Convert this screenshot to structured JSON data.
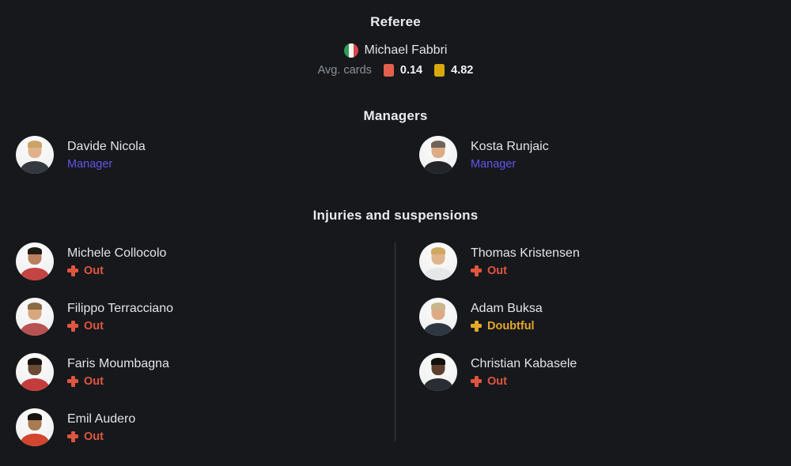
{
  "theme": {
    "background": "#16181c",
    "heading_color": "#e9ebed",
    "text_color": "#e2e4e6",
    "muted_color": "#8d9298",
    "accent_purple": "#6456e9",
    "status_out": "#e0553f",
    "status_doubtful": "#e2a82b",
    "card_red": "#e2604d",
    "card_yellow": "#d9a80b",
    "divider": "#3a3e44",
    "flag_green": "#2f9e5b",
    "flag_white": "#f2f4f1",
    "flag_red": "#d6464f"
  },
  "referee": {
    "title": "Referee",
    "name": "Michael Fabbri",
    "flag_icon": "italy-flag",
    "avg_cards_label": "Avg. cards",
    "red_cards_avg": "0.14",
    "yellow_cards_avg": "4.82"
  },
  "managers": {
    "title": "Managers",
    "items": [
      {
        "name": "Davide Nicola",
        "role": "Manager",
        "avatar": {
          "skin": "#e0b28c",
          "shirt": "#34383f",
          "hair": "#c9a468"
        }
      },
      {
        "name": "Kosta Runjaic",
        "role": "Manager",
        "avatar": {
          "skin": "#ddab84",
          "shirt": "#22252a",
          "hair": "#70635a"
        }
      }
    ]
  },
  "injuries": {
    "title": "Injuries and suspensions",
    "columns": [
      {
        "players": [
          {
            "name": "Michele Collocolo",
            "status": "Out",
            "status_type": "out",
            "avatar": {
              "skin": "#b9805e",
              "shirt": "#c44343",
              "hair": "#201a15"
            }
          },
          {
            "name": "Filippo Terracciano",
            "status": "Out",
            "status_type": "out",
            "avatar": {
              "skin": "#d8a77e",
              "shirt": "#b95252",
              "hair": "#8a6a45"
            }
          },
          {
            "name": "Faris Moumbagna",
            "status": "Out",
            "status_type": "out",
            "avatar": {
              "skin": "#6b4a33",
              "shirt": "#c43c3c",
              "hair": "#17120e"
            }
          },
          {
            "name": "Emil Audero",
            "status": "Out",
            "status_type": "out",
            "avatar": {
              "skin": "#aa7a51",
              "shirt": "#d2452e",
              "hair": "#17120e"
            }
          }
        ]
      },
      {
        "players": [
          {
            "name": "Thomas Kristensen",
            "status": "Out",
            "status_type": "out",
            "avatar": {
              "skin": "#e0b48c",
              "shirt": "#e6e7e9",
              "hair": "#d2a860"
            }
          },
          {
            "name": "Adam Buksa",
            "status": "Doubtful",
            "status_type": "doubtful",
            "avatar": {
              "skin": "#dcab85",
              "shirt": "#2e3642",
              "hair": "#c9b68b"
            }
          },
          {
            "name": "Christian Kabasele",
            "status": "Out",
            "status_type": "out",
            "avatar": {
              "skin": "#5d4030",
              "shirt": "#2a2d33",
              "hair": "#14100c"
            }
          }
        ]
      }
    ]
  }
}
